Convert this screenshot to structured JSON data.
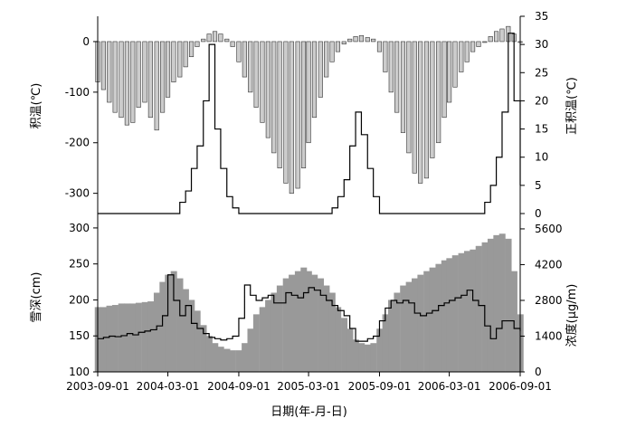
{
  "chart_data": [
    {
      "type": "bar",
      "panel": "top",
      "x_dates": [
        "2003-09-01",
        "2003-09-16",
        "2003-10-01",
        "2003-10-16",
        "2003-11-01",
        "2003-11-16",
        "2003-12-01",
        "2003-12-16",
        "2004-01-01",
        "2004-01-16",
        "2004-02-01",
        "2004-02-16",
        "2004-03-01",
        "2004-03-16",
        "2004-04-01",
        "2004-04-16",
        "2004-05-01",
        "2004-05-16",
        "2004-06-01",
        "2004-06-16",
        "2004-07-01",
        "2004-07-16",
        "2004-08-01",
        "2004-08-16",
        "2004-09-01",
        "2004-09-16",
        "2004-10-01",
        "2004-10-16",
        "2004-11-01",
        "2004-11-16",
        "2004-12-01",
        "2004-12-16",
        "2005-01-01",
        "2005-01-16",
        "2005-02-01",
        "2005-02-16",
        "2005-03-01",
        "2005-03-16",
        "2005-04-01",
        "2005-04-16",
        "2005-05-01",
        "2005-05-16",
        "2005-06-01",
        "2005-06-16",
        "2005-07-01",
        "2005-07-16",
        "2005-08-01",
        "2005-08-16",
        "2005-09-01",
        "2005-09-16",
        "2005-10-01",
        "2005-10-16",
        "2005-11-01",
        "2005-11-16",
        "2005-12-01",
        "2005-12-16",
        "2006-01-01",
        "2006-01-16",
        "2006-02-01",
        "2006-02-16",
        "2006-03-01",
        "2006-03-16",
        "2006-04-01",
        "2006-04-16",
        "2006-05-01",
        "2006-05-16",
        "2006-06-01",
        "2006-06-16",
        "2006-07-01",
        "2006-07-16",
        "2006-08-01",
        "2006-08-16",
        "2006-09-01"
      ],
      "series": [
        {
          "axis": "left",
          "values": [
            -80,
            -95,
            -120,
            -140,
            -150,
            -165,
            -160,
            -130,
            -120,
            -150,
            -175,
            -140,
            -110,
            -80,
            -70,
            -50,
            -30,
            -10,
            5,
            15,
            20,
            15,
            5,
            -10,
            -40,
            -70,
            -100,
            -130,
            -160,
            -190,
            -220,
            -250,
            -280,
            -300,
            -290,
            -250,
            -200,
            -150,
            -110,
            -70,
            -40,
            -20,
            -5,
            5,
            10,
            12,
            8,
            5,
            -20,
            -60,
            -100,
            -140,
            -180,
            -220,
            -260,
            -280,
            -270,
            -230,
            -200,
            -150,
            -120,
            -90,
            -60,
            -40,
            -20,
            -10,
            0,
            10,
            20,
            25,
            30,
            15,
            0
          ]
        },
        {
          "axis": "right",
          "values": [
            0,
            0,
            0,
            0,
            0,
            0,
            0,
            0,
            0,
            0,
            0,
            0,
            0,
            0,
            2,
            4,
            8,
            12,
            20,
            30,
            15,
            8,
            3,
            1,
            0,
            0,
            0,
            0,
            0,
            0,
            0,
            0,
            0,
            0,
            0,
            0,
            0,
            0,
            0,
            0,
            1,
            3,
            6,
            12,
            18,
            14,
            8,
            3,
            0,
            0,
            0,
            0,
            0,
            0,
            0,
            0,
            0,
            0,
            0,
            0,
            0,
            0,
            0,
            0,
            0,
            0,
            2,
            5,
            10,
            18,
            32,
            20,
            5
          ]
        }
      ],
      "ylabel": "积温(℃)",
      "y2label": "正积温(℃)",
      "ylim": [
        -340,
        50
      ],
      "y2lim": [
        0,
        35
      ],
      "yticks": [
        0,
        -100,
        -200,
        -300
      ],
      "y2ticks": [
        0,
        5,
        10,
        15,
        20,
        25,
        30,
        35
      ]
    },
    {
      "type": "area",
      "panel": "bottom",
      "x_dates": [
        "2003-09-01",
        "2003-09-16",
        "2003-10-01",
        "2003-10-16",
        "2003-11-01",
        "2003-11-16",
        "2003-12-01",
        "2003-12-16",
        "2004-01-01",
        "2004-01-16",
        "2004-02-01",
        "2004-02-16",
        "2004-03-01",
        "2004-03-16",
        "2004-04-01",
        "2004-04-16",
        "2004-05-01",
        "2004-05-16",
        "2004-06-01",
        "2004-06-16",
        "2004-07-01",
        "2004-07-16",
        "2004-08-01",
        "2004-08-16",
        "2004-09-01",
        "2004-09-16",
        "2004-10-01",
        "2004-10-16",
        "2004-11-01",
        "2004-11-16",
        "2004-12-01",
        "2004-12-16",
        "2005-01-01",
        "2005-01-16",
        "2005-02-01",
        "2005-02-16",
        "2005-03-01",
        "2005-03-16",
        "2005-04-01",
        "2005-04-16",
        "2005-05-01",
        "2005-05-16",
        "2005-06-01",
        "2005-06-16",
        "2005-07-01",
        "2005-07-16",
        "2005-08-01",
        "2005-08-16",
        "2005-09-01",
        "2005-09-16",
        "2005-10-01",
        "2005-10-16",
        "2005-11-01",
        "2005-11-16",
        "2005-12-01",
        "2005-12-16",
        "2006-01-01",
        "2006-01-16",
        "2006-02-01",
        "2006-02-16",
        "2006-03-01",
        "2006-03-16",
        "2006-04-01",
        "2006-04-16",
        "2006-05-01",
        "2006-05-16",
        "2006-06-01",
        "2006-06-16",
        "2006-07-01",
        "2006-07-16",
        "2006-08-01",
        "2006-08-16",
        "2006-09-01"
      ],
      "series": [
        {
          "axis": "left",
          "values": [
            190,
            190,
            192,
            193,
            195,
            195,
            195,
            196,
            197,
            198,
            210,
            225,
            235,
            240,
            230,
            215,
            200,
            185,
            165,
            150,
            140,
            135,
            132,
            130,
            130,
            140,
            160,
            180,
            190,
            200,
            210,
            220,
            230,
            235,
            240,
            245,
            240,
            235,
            230,
            220,
            210,
            190,
            175,
            160,
            145,
            140,
            138,
            140,
            160,
            180,
            200,
            210,
            220,
            225,
            230,
            235,
            240,
            245,
            250,
            255,
            258,
            262,
            265,
            268,
            270,
            275,
            280,
            285,
            290,
            292,
            285,
            240,
            180
          ]
        },
        {
          "axis": "right",
          "values": [
            1300,
            1350,
            1400,
            1380,
            1420,
            1500,
            1450,
            1550,
            1600,
            1650,
            1800,
            2200,
            3800,
            2800,
            2200,
            2600,
            1900,
            1700,
            1500,
            1350,
            1300,
            1250,
            1300,
            1400,
            2100,
            3400,
            3000,
            2800,
            2900,
            3000,
            2700,
            2700,
            3100,
            3000,
            2900,
            3100,
            3300,
            3200,
            3000,
            2800,
            2600,
            2400,
            2200,
            1700,
            1200,
            1200,
            1300,
            1400,
            2000,
            2500,
            2800,
            2700,
            2800,
            2700,
            2300,
            2200,
            2300,
            2400,
            2600,
            2700,
            2800,
            2900,
            3000,
            3200,
            2800,
            2600,
            1800,
            1300,
            1700,
            2000,
            2000,
            1700,
            1600
          ]
        }
      ],
      "ylabel": "雪深(cm)",
      "y2label": "浓度(µg/m)",
      "ylim": [
        100,
        320
      ],
      "y2lim": [
        0,
        6200
      ],
      "yticks": [
        100,
        150,
        200,
        250,
        300
      ],
      "y2ticks": [
        0,
        1400,
        2800,
        4200,
        5600
      ]
    }
  ],
  "x_axis": {
    "label": "日期(年-月-日)",
    "ticks": [
      "2003-09-01",
      "2004-03-01",
      "2004-09-01",
      "2005-03-01",
      "2005-09-01",
      "2006-03-01",
      "2006-09-01"
    ]
  }
}
